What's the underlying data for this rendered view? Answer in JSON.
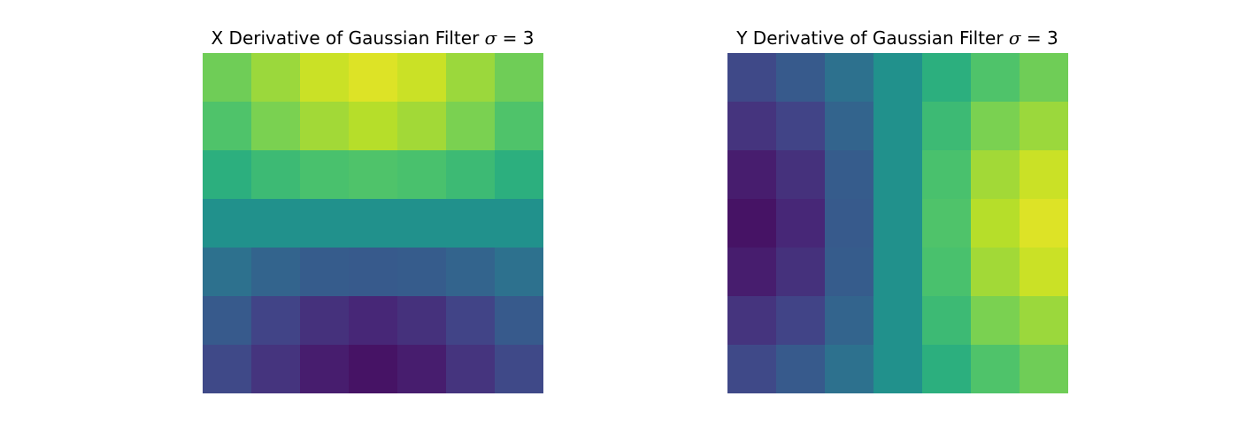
{
  "chart_data": [
    {
      "type": "heatmap",
      "title_prefix": "X Derivative of Gaussian Filter ",
      "title_symbol": "σ",
      "title_suffix": " = 3",
      "colormap": "viridis",
      "axes_visible": false,
      "grid": false,
      "rows": 7,
      "cols": 7,
      "vrange": [
        0,
        1
      ],
      "values": [
        [
          0.78,
          0.85,
          0.92,
          0.95,
          0.92,
          0.85,
          0.78
        ],
        [
          0.72,
          0.8,
          0.86,
          0.89,
          0.86,
          0.8,
          0.72
        ],
        [
          0.63,
          0.68,
          0.71,
          0.72,
          0.71,
          0.68,
          0.63
        ],
        [
          0.5,
          0.5,
          0.5,
          0.5,
          0.5,
          0.5,
          0.5
        ],
        [
          0.37,
          0.32,
          0.29,
          0.28,
          0.29,
          0.32,
          0.37
        ],
        [
          0.28,
          0.2,
          0.14,
          0.11,
          0.14,
          0.2,
          0.28
        ],
        [
          0.22,
          0.15,
          0.08,
          0.05,
          0.08,
          0.15,
          0.22
        ]
      ]
    },
    {
      "type": "heatmap",
      "title_prefix": "Y Derivative of Gaussian Filter ",
      "title_symbol": "σ",
      "title_suffix": " = 3",
      "colormap": "viridis",
      "axes_visible": false,
      "grid": false,
      "rows": 7,
      "cols": 7,
      "vrange": [
        0,
        1
      ],
      "values": [
        [
          0.22,
          0.28,
          0.37,
          0.5,
          0.63,
          0.72,
          0.78
        ],
        [
          0.15,
          0.2,
          0.32,
          0.5,
          0.68,
          0.8,
          0.85
        ],
        [
          0.08,
          0.14,
          0.29,
          0.5,
          0.71,
          0.86,
          0.92
        ],
        [
          0.05,
          0.11,
          0.28,
          0.5,
          0.72,
          0.89,
          0.95
        ],
        [
          0.08,
          0.14,
          0.29,
          0.5,
          0.71,
          0.86,
          0.92
        ],
        [
          0.15,
          0.2,
          0.32,
          0.5,
          0.68,
          0.8,
          0.85
        ],
        [
          0.22,
          0.28,
          0.37,
          0.5,
          0.63,
          0.72,
          0.78
        ]
      ]
    }
  ]
}
